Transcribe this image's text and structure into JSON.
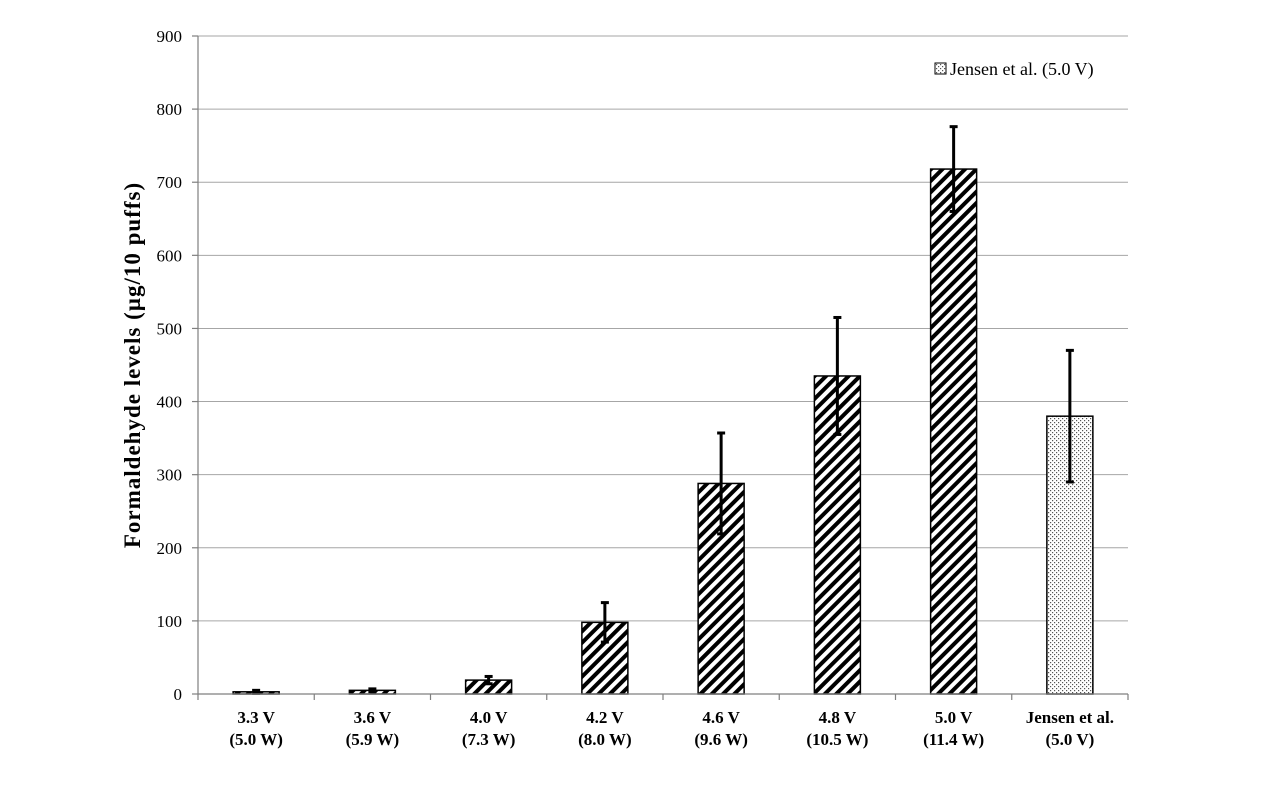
{
  "chart_data": {
    "type": "bar",
    "title": "",
    "xlabel": "",
    "ylabel": "Formaldehyde levels (µg/10 puffs)",
    "ylim": [
      0,
      900
    ],
    "yticks": [
      0,
      100,
      200,
      300,
      400,
      500,
      600,
      700,
      800,
      900
    ],
    "grid": true,
    "categories": [
      [
        "3.3 V",
        "(5.0 W)"
      ],
      [
        "3.6 V",
        "(5.9 W)"
      ],
      [
        "4.0 V",
        "(7.3 W)"
      ],
      [
        "4.2 V",
        "(8.0 W)"
      ],
      [
        "4.6 V",
        "(9.6 W)"
      ],
      [
        "4.8 V",
        "(10.5 W)"
      ],
      [
        "5.0 V",
        "(11.4 W)"
      ],
      [
        "Jensen et al.",
        "(5.0 V)"
      ]
    ],
    "values": [
      3,
      5,
      19,
      98,
      288,
      435,
      718,
      380
    ],
    "errors": [
      2,
      2,
      5,
      27,
      69,
      80,
      58,
      90
    ],
    "patterns": [
      "hatch",
      "hatch",
      "hatch",
      "hatch",
      "hatch",
      "hatch",
      "hatch",
      "dots"
    ],
    "legend": {
      "position": "top-right",
      "entries": [
        {
          "label": "Jensen et al. (5.0 V)",
          "pattern": "dots"
        }
      ]
    },
    "colors": {
      "grid": "#a6a6a6",
      "axis": "#7f7f7f",
      "bar_outline": "#000000",
      "error_bar": "#000000"
    }
  }
}
